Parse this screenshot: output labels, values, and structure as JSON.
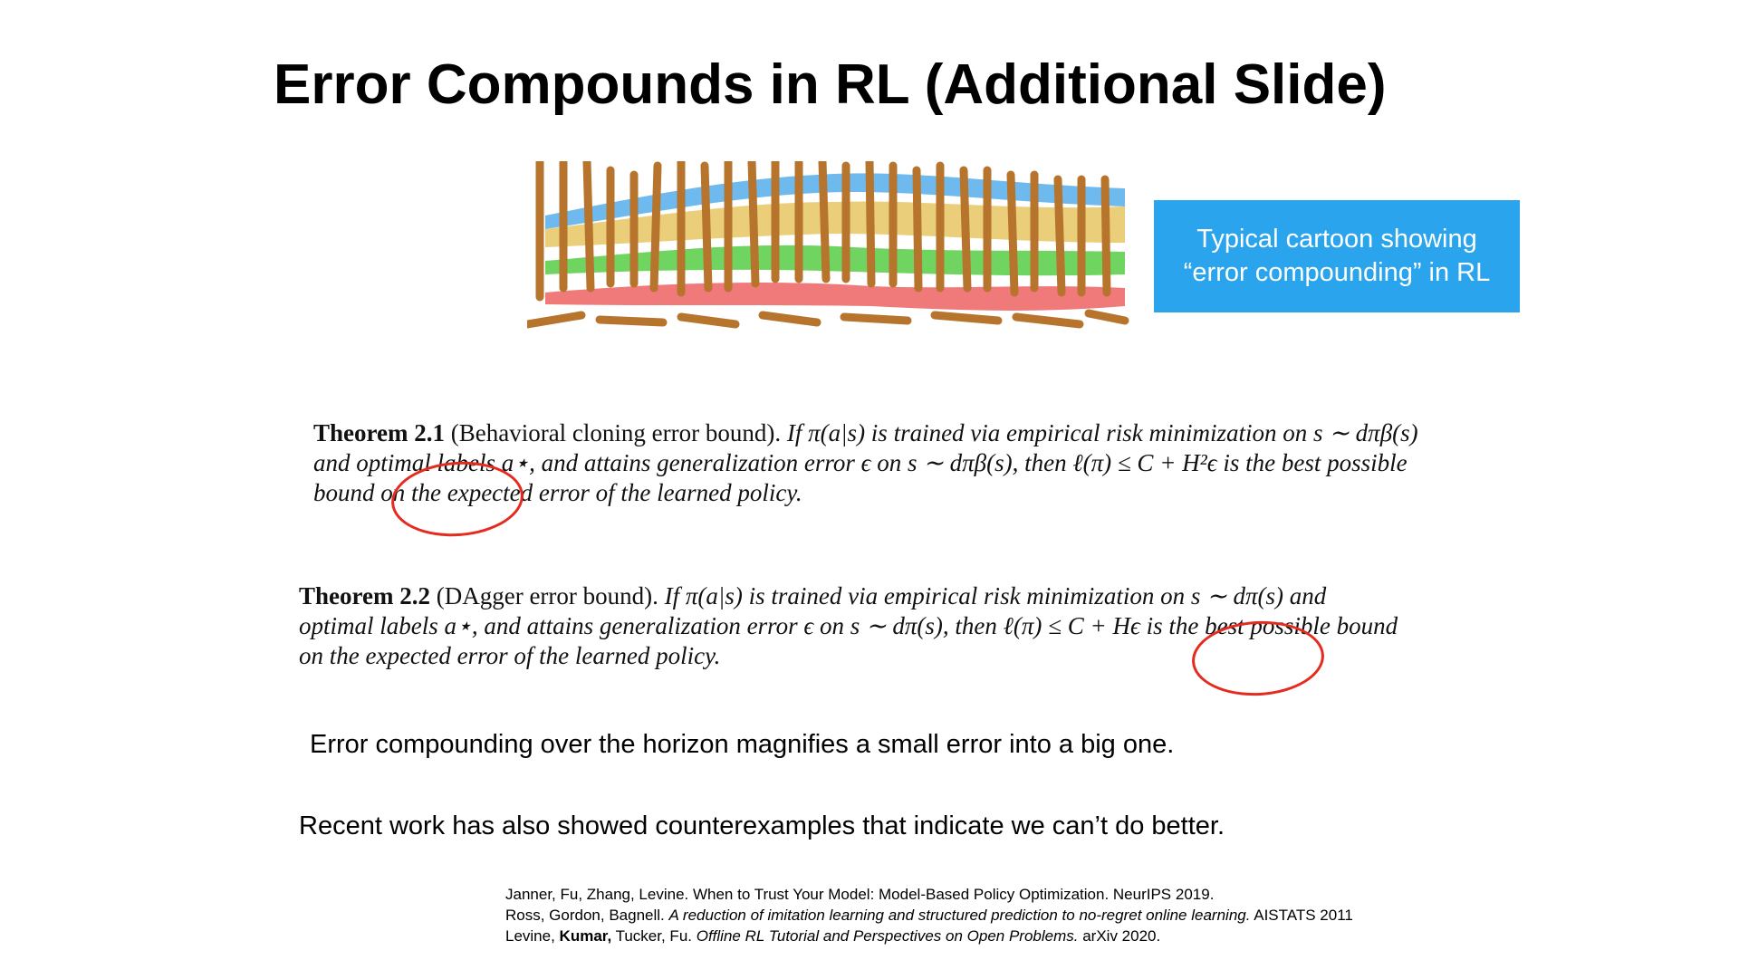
{
  "slide": {
    "title": "Error Compounds in RL (Additional Slide)",
    "callout": {
      "line1": "Typical cartoon showing",
      "line2": "“error compounding” in RL",
      "color": "#2aa4ec"
    },
    "theorem1": {
      "label": "Theorem 2.1",
      "name": "(Behavioral cloning error bound).",
      "statement": "If π(a|s) is trained via empirical risk minimization on s ∼ dπβ(s) and optimal labels a⋆, and attains generalization error ϵ on s ∼ dπβ(s), then ℓ(π) ≤ C + H²ϵ is the best possible bound on the expected error of the learned policy."
    },
    "theorem2": {
      "label": "Theorem 2.2",
      "name": "(DAgger error bound).",
      "statement": "If π(a|s) is trained via empirical risk minimization on s ∼ dπ(s) and optimal labels a⋆, and attains generalization error ϵ on s ∼ dπ(s), then ℓ(π) ≤ C + Hϵ is the best possible bound on the expected error of the learned policy."
    },
    "line1": "Error compounding over the horizon magnifies a small error into a big one.",
    "line2": "Recent work has also showed counterexamples that indicate we can’t do better.",
    "references": [
      {
        "plain": "Janner, Fu, Zhang, Levine. When to Trust Your Model: Model-Based Policy Optimization. NeurIPS 2019.",
        "pre": "",
        "bold": "",
        "mid": "",
        "italic": "",
        "post": ""
      },
      {
        "plain": "",
        "pre": "Ross, Gordon, Bagnell. ",
        "bold": "",
        "mid": "",
        "italic": "A reduction of imitation learning and structured prediction to no-regret online learning.",
        "post": " AISTATS 2011"
      },
      {
        "plain": "",
        "pre": "Levine, ",
        "bold": "Kumar,",
        "mid": " Tucker, Fu. ",
        "italic": "Offline RL Tutorial and Perspectives on Open Problems.",
        "post": " arXiv 2020."
      }
    ]
  }
}
